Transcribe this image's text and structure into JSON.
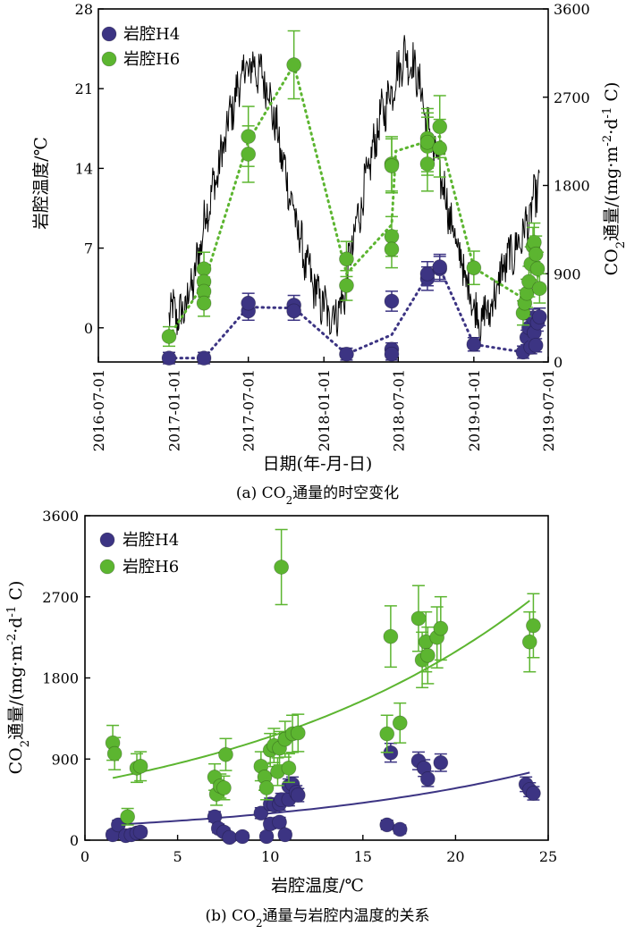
{
  "chart_data": [
    {
      "type": "line",
      "title": "",
      "caption": "(a) CO₂通量的时空变化",
      "xlabel": "日期(年-月-日)",
      "ylabel": "岩腔温度/℃",
      "y2label": "CO₂通量/(mg·m⁻²·d⁻¹ C)",
      "x_ticks": [
        "2016-07-01",
        "2017-01-01",
        "2017-07-01",
        "2018-01-01",
        "2018-07-01",
        "2019-01-01",
        "2019-07-01"
      ],
      "y_ticks": [
        "0",
        "7",
        "14",
        "21",
        "28"
      ],
      "y2_ticks": [
        "0",
        "900",
        "1800",
        "2700",
        "3600"
      ],
      "ylim": [
        -3,
        28
      ],
      "y2lim": [
        0,
        3600
      ],
      "legend_position": "top-left",
      "colors": {
        "H4": "#3c3483",
        "H6": "#5cb530",
        "temperature": "#000000"
      },
      "series": [
        {
          "name": "岩腔H4",
          "axis": "right",
          "points": [
            {
              "date": "2016-12-20",
              "value": 40
            },
            {
              "date": "2017-03-15",
              "value": 40
            },
            {
              "date": "2017-07-01",
              "value": 520
            },
            {
              "date": "2017-07-01",
              "value": 600
            },
            {
              "date": "2017-10-20",
              "value": 580
            },
            {
              "date": "2017-10-20",
              "value": 520
            },
            {
              "date": "2018-02-25",
              "value": 80
            },
            {
              "date": "2018-06-15",
              "value": 620
            },
            {
              "date": "2018-06-15",
              "value": 130
            },
            {
              "date": "2018-06-15",
              "value": 80
            },
            {
              "date": "2018-09-10",
              "value": 850
            },
            {
              "date": "2018-09-10",
              "value": 900
            },
            {
              "date": "2018-10-10",
              "value": 950
            },
            {
              "date": "2018-10-10",
              "value": 970
            },
            {
              "date": "2019-01-01",
              "value": 180
            },
            {
              "date": "2019-05-01",
              "value": 100
            },
            {
              "date": "2019-05-10",
              "value": 250
            },
            {
              "date": "2019-05-15",
              "value": 350
            },
            {
              "date": "2019-05-20",
              "value": 150
            },
            {
              "date": "2019-05-25",
              "value": 450
            },
            {
              "date": "2019-05-28",
              "value": 300
            },
            {
              "date": "2019-06-01",
              "value": 170
            },
            {
              "date": "2019-06-05",
              "value": 400
            },
            {
              "date": "2019-06-10",
              "value": 460
            }
          ]
        },
        {
          "name": "岩腔H6",
          "axis": "right",
          "points": [
            {
              "date": "2016-12-20",
              "value": 260
            },
            {
              "date": "2017-03-15",
              "value": 950
            },
            {
              "date": "2017-03-15",
              "value": 820
            },
            {
              "date": "2017-03-15",
              "value": 720
            },
            {
              "date": "2017-03-15",
              "value": 600
            },
            {
              "date": "2017-07-01",
              "value": 2300
            },
            {
              "date": "2017-07-01",
              "value": 2120
            },
            {
              "date": "2017-10-20",
              "value": 3030
            },
            {
              "date": "2018-02-25",
              "value": 1050
            },
            {
              "date": "2018-02-25",
              "value": 780
            },
            {
              "date": "2018-06-15",
              "value": 2020
            },
            {
              "date": "2018-06-15",
              "value": 2000
            },
            {
              "date": "2018-06-15",
              "value": 1280
            },
            {
              "date": "2018-06-15",
              "value": 1150
            },
            {
              "date": "2018-09-10",
              "value": 2200
            },
            {
              "date": "2018-09-10",
              "value": 2020
            },
            {
              "date": "2018-09-10",
              "value": 2280
            },
            {
              "date": "2018-09-10",
              "value": 2240
            },
            {
              "date": "2018-10-10",
              "value": 2400
            },
            {
              "date": "2018-10-10",
              "value": 2180
            },
            {
              "date": "2019-01-01",
              "value": 960
            },
            {
              "date": "2019-05-01",
              "value": 500
            },
            {
              "date": "2019-05-05",
              "value": 600
            },
            {
              "date": "2019-05-10",
              "value": 700
            },
            {
              "date": "2019-05-15",
              "value": 820
            },
            {
              "date": "2019-05-20",
              "value": 1000
            },
            {
              "date": "2019-05-25",
              "value": 1180
            },
            {
              "date": "2019-05-28",
              "value": 1220
            },
            {
              "date": "2019-06-01",
              "value": 1100
            },
            {
              "date": "2019-06-05",
              "value": 950
            },
            {
              "date": "2019-06-10",
              "value": 750
            }
          ],
          "trend": [
            {
              "date": "2016-12-20",
              "value": 260
            },
            {
              "date": "2017-03-15",
              "value": 800
            },
            {
              "date": "2017-07-01",
              "value": 2250
            },
            {
              "date": "2017-10-20",
              "value": 3030
            },
            {
              "date": "2018-02-25",
              "value": 900
            },
            {
              "date": "2018-06-15",
              "value": 1400
            },
            {
              "date": "2018-06-25",
              "value": 2150
            },
            {
              "date": "2018-09-10",
              "value": 2250
            },
            {
              "date": "2018-10-10",
              "value": 2300
            },
            {
              "date": "2019-01-01",
              "value": 960
            },
            {
              "date": "2019-05-01",
              "value": 650
            },
            {
              "date": "2019-06-10",
              "value": 900
            }
          ]
        },
        {
          "name": "",
          "axis": "left",
          "kind": "temperature",
          "monthly_means": [
            {
              "date": "2016-12-20",
              "value": 1.5
            },
            {
              "date": "2017-01-20",
              "value": 1.0
            },
            {
              "date": "2017-02-20",
              "value": 4.5
            },
            {
              "date": "2017-03-20",
              "value": 10.0
            },
            {
              "date": "2017-04-20",
              "value": 14.0
            },
            {
              "date": "2017-05-20",
              "value": 19.0
            },
            {
              "date": "2017-06-20",
              "value": 22.5
            },
            {
              "date": "2017-07-15",
              "value": 23.0
            },
            {
              "date": "2017-08-15",
              "value": 21.5
            },
            {
              "date": "2017-09-15",
              "value": 16.0
            },
            {
              "date": "2017-10-15",
              "value": 11.0
            },
            {
              "date": "2017-11-15",
              "value": 6.0
            },
            {
              "date": "2017-12-15",
              "value": 3.0
            },
            {
              "date": "2018-01-15",
              "value": 1.0
            },
            {
              "date": "2018-02-15",
              "value": 2.0
            },
            {
              "date": "2018-03-15",
              "value": 8.0
            },
            {
              "date": "2018-04-15",
              "value": 13.0
            },
            {
              "date": "2018-05-15",
              "value": 18.0
            },
            {
              "date": "2018-06-15",
              "value": 21.0
            },
            {
              "date": "2018-07-15",
              "value": 24.0
            },
            {
              "date": "2018-08-15",
              "value": 22.5
            },
            {
              "date": "2018-09-15",
              "value": 17.0
            },
            {
              "date": "2018-10-15",
              "value": 13.0
            },
            {
              "date": "2018-11-15",
              "value": 8.0
            },
            {
              "date": "2018-12-15",
              "value": 4.0
            },
            {
              "date": "2019-01-15",
              "value": 0.5
            },
            {
              "date": "2019-02-15",
              "value": 2.0
            },
            {
              "date": "2019-03-15",
              "value": 5.5
            },
            {
              "date": "2019-04-15",
              "value": 7.0
            },
            {
              "date": "2019-05-15",
              "value": 9.5
            },
            {
              "date": "2019-06-10",
              "value": 13.0
            }
          ]
        }
      ]
    },
    {
      "type": "scatter",
      "title": "",
      "caption": "(b) CO₂通量与岩腔内温度的关系",
      "xlabel": "岩腔温度/℃",
      "ylabel": "CO₂通量/(mg·m⁻²·d⁻¹ C)",
      "x_ticks": [
        "0",
        "5",
        "10",
        "15",
        "20",
        "25"
      ],
      "y_ticks": [
        "0",
        "900",
        "1800",
        "2700",
        "3600"
      ],
      "xlim": [
        0,
        25
      ],
      "ylim": [
        0,
        3600
      ],
      "legend_position": "top-left",
      "series": [
        {
          "name": "岩腔H4",
          "points": [
            [
              1.5,
              60
            ],
            [
              1.8,
              170
            ],
            [
              2.2,
              50
            ],
            [
              2.5,
              60
            ],
            [
              2.8,
              80
            ],
            [
              3.0,
              90
            ],
            [
              7.0,
              260
            ],
            [
              7.2,
              130
            ],
            [
              7.5,
              90
            ],
            [
              7.8,
              30
            ],
            [
              8.5,
              40
            ],
            [
              9.5,
              300
            ],
            [
              9.8,
              40
            ],
            [
              10.0,
              180
            ],
            [
              10.0,
              400
            ],
            [
              10.2,
              390
            ],
            [
              10.5,
              200
            ],
            [
              10.5,
              400
            ],
            [
              10.6,
              450
            ],
            [
              10.8,
              60
            ],
            [
              11.0,
              450
            ],
            [
              11.0,
              600
            ],
            [
              11.2,
              620
            ],
            [
              11.4,
              530
            ],
            [
              11.5,
              500
            ],
            [
              16.3,
              170
            ],
            [
              16.5,
              970
            ],
            [
              17.0,
              120
            ],
            [
              18.0,
              880
            ],
            [
              18.3,
              800
            ],
            [
              18.5,
              680
            ],
            [
              19.2,
              860
            ],
            [
              23.8,
              620
            ],
            [
              24.0,
              560
            ],
            [
              24.2,
              520
            ]
          ],
          "fit": [
            [
              1.5,
              170
            ],
            [
              5,
              210
            ],
            [
              10,
              290
            ],
            [
              15,
              410
            ],
            [
              20,
              570
            ],
            [
              24.2,
              760
            ]
          ]
        },
        {
          "name": "岩腔H6",
          "points": [
            [
              1.5,
              1080
            ],
            [
              1.6,
              960
            ],
            [
              2.3,
              260
            ],
            [
              2.8,
              800
            ],
            [
              3.0,
              820
            ],
            [
              7.0,
              700
            ],
            [
              7.1,
              510
            ],
            [
              7.3,
              600
            ],
            [
              7.5,
              580
            ],
            [
              7.6,
              950
            ],
            [
              9.5,
              820
            ],
            [
              9.7,
              700
            ],
            [
              9.8,
              580
            ],
            [
              10.0,
              1000
            ],
            [
              10.2,
              1050
            ],
            [
              10.4,
              760
            ],
            [
              10.5,
              1020
            ],
            [
              10.6,
              3030
            ],
            [
              10.8,
              1120
            ],
            [
              11.0,
              800
            ],
            [
              11.2,
              1180
            ],
            [
              11.5,
              1190
            ],
            [
              16.3,
              1180
            ],
            [
              16.5,
              2260
            ],
            [
              17.0,
              1300
            ],
            [
              18.0,
              2460
            ],
            [
              18.2,
              2000
            ],
            [
              18.4,
              2200
            ],
            [
              18.5,
              2050
            ],
            [
              19.0,
              2250
            ],
            [
              19.2,
              2350
            ],
            [
              24.0,
              2200
            ],
            [
              24.2,
              2380
            ]
          ],
          "fit": [
            [
              1.5,
              690
            ],
            [
              5,
              840
            ],
            [
              10,
              1110
            ],
            [
              15,
              1500
            ],
            [
              20,
              2000
            ],
            [
              24.2,
              2690
            ]
          ]
        }
      ]
    }
  ]
}
